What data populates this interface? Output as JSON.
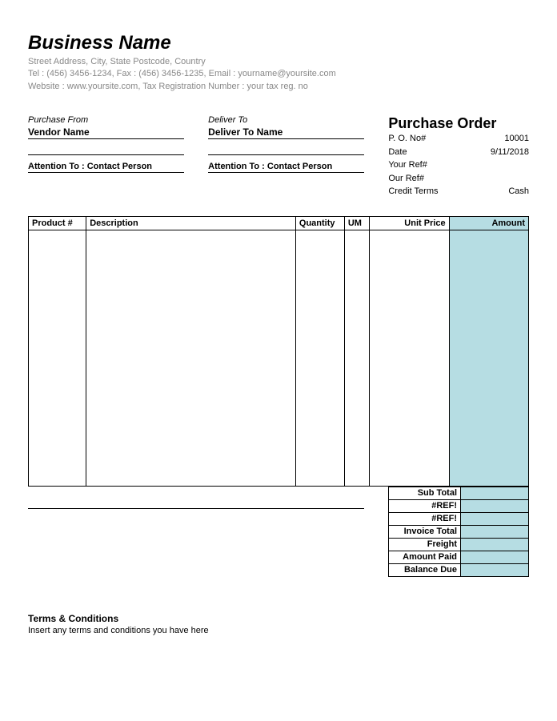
{
  "header": {
    "business_name": "Business Name",
    "address_line": "Street Address, City, State Postcode, Country",
    "contact_line": "Tel : (456) 3456-1234, Fax : (456) 3456-1235, Email : yourname@yoursite.com",
    "web_line": "Website : www.yoursite.com, Tax Registration Number : your tax reg. no"
  },
  "purchase_from": {
    "label": "Purchase From",
    "name": "Vendor Name",
    "attention": "Attention To : Contact Person"
  },
  "deliver_to": {
    "label": "Deliver To",
    "name": "Deliver To Name",
    "attention": "Attention To : Contact Person"
  },
  "po_meta": {
    "title": "Purchase Order",
    "rows": [
      {
        "label": "P. O. No#",
        "value": "10001"
      },
      {
        "label": "Date",
        "value": "9/11/2018"
      },
      {
        "label": "Your Ref#",
        "value": ""
      },
      {
        "label": "Our Ref#",
        "value": ""
      },
      {
        "label": "Credit Terms",
        "value": "Cash"
      }
    ]
  },
  "table": {
    "headers": {
      "product": "Product #",
      "description": "Description",
      "quantity": "Quantity",
      "um": "UM",
      "unit_price": "Unit Price",
      "amount": "Amount"
    },
    "accent_color": "#b6dde3"
  },
  "summary": {
    "rows": [
      {
        "label": "Sub Total",
        "value": ""
      },
      {
        "label": "#REF!",
        "value": ""
      },
      {
        "label": "#REF!",
        "value": ""
      },
      {
        "label": "Invoice Total",
        "value": ""
      },
      {
        "label": "Freight",
        "value": ""
      },
      {
        "label": "Amount Paid",
        "value": ""
      },
      {
        "label": "Balance Due",
        "value": ""
      }
    ]
  },
  "terms": {
    "title": "Terms & Conditions",
    "body": "Insert any terms and conditions you have here"
  }
}
